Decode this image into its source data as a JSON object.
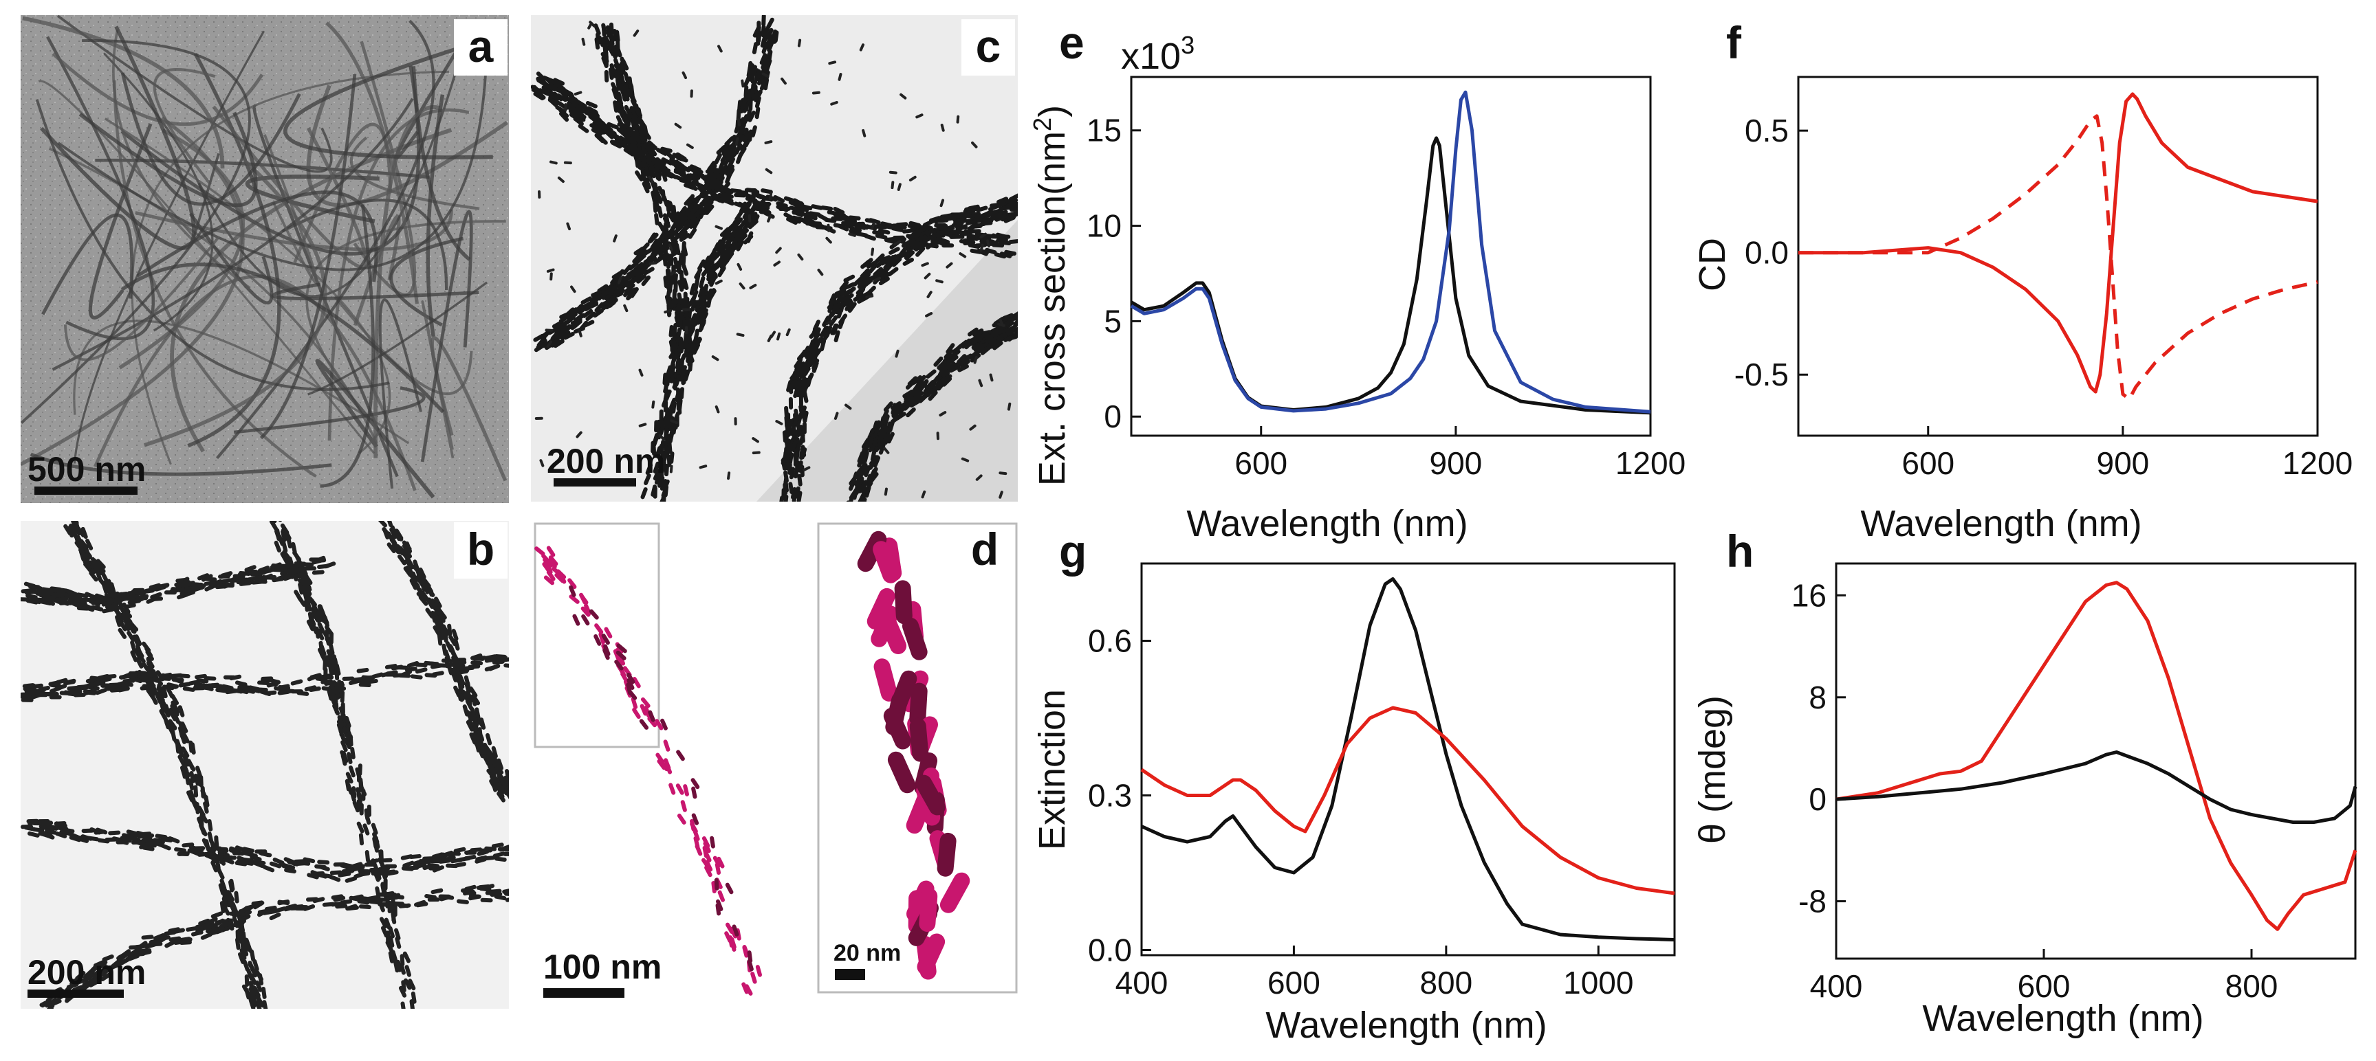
{
  "figure": {
    "panels": {
      "a": {
        "letter": "a",
        "scale_bar": "500 nm"
      },
      "b": {
        "letter": "b",
        "scale_bar": "200 nm"
      },
      "c": {
        "letter": "c",
        "scale_bar": "200 nm"
      },
      "d_overview": {
        "scale_bar": "100 nm"
      },
      "d": {
        "letter": "d",
        "scale_bar": "20 nm"
      }
    }
  },
  "colors": {
    "red": "#e32119",
    "blue": "#2b47a6",
    "black": "#111111",
    "magenta": "#c8166e",
    "dark_magenta": "#6e0f3a"
  },
  "chart_data": [
    {
      "id": "e",
      "letter": "e",
      "type": "line",
      "xlabel": "Wavelength (nm)",
      "ylabel": "Ext. cross section(nm²)",
      "ylabel_main": "Ext. cross section(nm",
      "ylabel_sup": "2",
      "ylabel_end": ")",
      "multiplier_base": "x10",
      "multiplier_exp": "3",
      "xlim": [
        400,
        1200
      ],
      "ylim": [
        -1,
        17.8
      ],
      "xticks": [
        600,
        900,
        1200
      ],
      "yticks": [
        0,
        5,
        10,
        15
      ],
      "xticklabels": [
        "600",
        "900",
        "1200"
      ],
      "yticklabels": [
        "0",
        "5",
        "10",
        "15"
      ],
      "series": [
        {
          "name": "black",
          "color": "#111111",
          "dash": false,
          "x": [
            400,
            420,
            450,
            480,
            500,
            510,
            520,
            540,
            560,
            580,
            600,
            650,
            700,
            750,
            780,
            800,
            820,
            840,
            855,
            865,
            870,
            875,
            885,
            900,
            920,
            950,
            1000,
            1100,
            1200
          ],
          "y": [
            6.0,
            5.6,
            5.8,
            6.5,
            7.0,
            7.0,
            6.5,
            4.0,
            2.0,
            1.0,
            0.55,
            0.35,
            0.5,
            0.95,
            1.5,
            2.3,
            3.8,
            7.2,
            11.3,
            14.2,
            14.6,
            14.2,
            11.0,
            6.2,
            3.2,
            1.6,
            0.8,
            0.35,
            0.2
          ]
        },
        {
          "name": "blue",
          "color": "#2b47a6",
          "dash": false,
          "x": [
            400,
            420,
            450,
            480,
            500,
            510,
            520,
            540,
            560,
            580,
            600,
            650,
            700,
            750,
            800,
            830,
            850,
            870,
            890,
            900,
            908,
            915,
            925,
            940,
            960,
            1000,
            1050,
            1100,
            1200
          ],
          "y": [
            5.8,
            5.4,
            5.6,
            6.2,
            6.7,
            6.7,
            6.2,
            3.8,
            1.9,
            0.95,
            0.5,
            0.3,
            0.4,
            0.7,
            1.2,
            2.0,
            3.0,
            5.0,
            9.8,
            14.0,
            16.6,
            17.0,
            15.0,
            9.0,
            4.5,
            1.8,
            0.9,
            0.5,
            0.25
          ]
        }
      ]
    },
    {
      "id": "f",
      "letter": "f",
      "type": "line",
      "xlabel": "Wavelength (nm)",
      "ylabel": "CD",
      "xlim": [
        400,
        1200
      ],
      "ylim": [
        -0.75,
        0.72
      ],
      "xticks": [
        600,
        900,
        1200
      ],
      "yticks": [
        -0.5,
        0.0,
        0.5
      ],
      "xticklabels": [
        "600",
        "900",
        "1200"
      ],
      "yticklabels": [
        "-0.5",
        "0.0",
        "0.5"
      ],
      "series": [
        {
          "name": "solid",
          "color": "#e32119",
          "dash": false,
          "x": [
            400,
            500,
            600,
            650,
            700,
            750,
            800,
            830,
            850,
            858,
            865,
            875,
            885,
            895,
            905,
            915,
            922,
            935,
            960,
            1000,
            1050,
            1100,
            1150,
            1200
          ],
          "y": [
            0.0,
            0.0,
            0.02,
            0.0,
            -0.06,
            -0.15,
            -0.28,
            -0.42,
            -0.55,
            -0.57,
            -0.5,
            -0.25,
            0.1,
            0.45,
            0.62,
            0.65,
            0.63,
            0.56,
            0.45,
            0.35,
            0.3,
            0.25,
            0.23,
            0.21
          ]
        },
        {
          "name": "dashed",
          "color": "#e32119",
          "dash": true,
          "x": [
            400,
            500,
            600,
            650,
            700,
            750,
            800,
            830,
            850,
            860,
            868,
            876,
            884,
            892,
            900,
            910,
            920,
            950,
            1000,
            1050,
            1100,
            1150,
            1200
          ],
          "y": [
            0.0,
            0.0,
            0.0,
            0.06,
            0.14,
            0.24,
            0.36,
            0.46,
            0.54,
            0.56,
            0.45,
            0.2,
            -0.1,
            -0.4,
            -0.58,
            -0.6,
            -0.55,
            -0.45,
            -0.33,
            -0.25,
            -0.19,
            -0.15,
            -0.12
          ]
        }
      ]
    },
    {
      "id": "g",
      "letter": "g",
      "type": "line",
      "xlabel": "Wavelength (nm)",
      "ylabel": "Extinction",
      "xlim": [
        400,
        1100
      ],
      "ylim": [
        -0.01,
        0.75
      ],
      "xticks": [
        400,
        600,
        800,
        1000
      ],
      "yticks": [
        0.0,
        0.3,
        0.6
      ],
      "xticklabels": [
        "400",
        "600",
        "800",
        "1000"
      ],
      "yticklabels": [
        "0.0",
        "0.3",
        "0.6"
      ],
      "series": [
        {
          "name": "black",
          "color": "#111111",
          "dash": false,
          "x": [
            400,
            430,
            460,
            490,
            510,
            520,
            530,
            550,
            575,
            600,
            625,
            650,
            675,
            700,
            720,
            730,
            740,
            760,
            780,
            800,
            820,
            850,
            880,
            900,
            950,
            1000,
            1050,
            1100
          ],
          "y": [
            0.24,
            0.22,
            0.21,
            0.22,
            0.25,
            0.26,
            0.24,
            0.2,
            0.16,
            0.15,
            0.18,
            0.28,
            0.45,
            0.63,
            0.71,
            0.72,
            0.7,
            0.62,
            0.5,
            0.38,
            0.28,
            0.17,
            0.09,
            0.05,
            0.03,
            0.025,
            0.022,
            0.02
          ]
        },
        {
          "name": "red",
          "color": "#e32119",
          "dash": false,
          "x": [
            400,
            430,
            460,
            490,
            510,
            520,
            530,
            550,
            575,
            600,
            615,
            640,
            670,
            700,
            730,
            760,
            800,
            850,
            900,
            950,
            1000,
            1050,
            1100
          ],
          "y": [
            0.35,
            0.32,
            0.3,
            0.3,
            0.32,
            0.33,
            0.33,
            0.31,
            0.27,
            0.24,
            0.23,
            0.3,
            0.4,
            0.45,
            0.47,
            0.46,
            0.41,
            0.33,
            0.24,
            0.18,
            0.14,
            0.12,
            0.11
          ]
        }
      ]
    },
    {
      "id": "h",
      "letter": "h",
      "type": "line",
      "xlabel": "Wavelength (nm)",
      "ylabel": "θ (mdeg)",
      "xlim": [
        400,
        900
      ],
      "ylim": [
        -12.5,
        18.5
      ],
      "xticks": [
        400,
        600,
        800
      ],
      "yticks": [
        -8,
        0,
        8,
        16
      ],
      "xticklabels": [
        "400",
        "600",
        "800"
      ],
      "yticklabels": [
        "-8",
        "0",
        "8",
        "16"
      ],
      "series": [
        {
          "name": "red",
          "color": "#e32119",
          "dash": false,
          "x": [
            400,
            440,
            480,
            500,
            520,
            540,
            560,
            580,
            600,
            620,
            640,
            660,
            670,
            680,
            700,
            720,
            740,
            760,
            780,
            800,
            815,
            825,
            835,
            850,
            870,
            890,
            900
          ],
          "y": [
            0.0,
            0.5,
            1.5,
            2.0,
            2.2,
            3.0,
            5.5,
            8.0,
            10.5,
            13.0,
            15.5,
            16.8,
            17.0,
            16.5,
            14.0,
            9.5,
            4.0,
            -1.5,
            -5.0,
            -7.5,
            -9.5,
            -10.2,
            -9.0,
            -7.5,
            -7.0,
            -6.5,
            -4.0
          ]
        },
        {
          "name": "black",
          "color": "#111111",
          "dash": false,
          "x": [
            400,
            440,
            480,
            520,
            560,
            600,
            640,
            660,
            670,
            680,
            700,
            720,
            740,
            760,
            780,
            800,
            820,
            840,
            860,
            880,
            895,
            900
          ],
          "y": [
            0.0,
            0.2,
            0.5,
            0.8,
            1.3,
            2.0,
            2.8,
            3.5,
            3.7,
            3.4,
            2.8,
            2.0,
            1.0,
            0.0,
            -0.8,
            -1.2,
            -1.5,
            -1.8,
            -1.8,
            -1.5,
            -0.5,
            1.0
          ]
        }
      ]
    }
  ]
}
